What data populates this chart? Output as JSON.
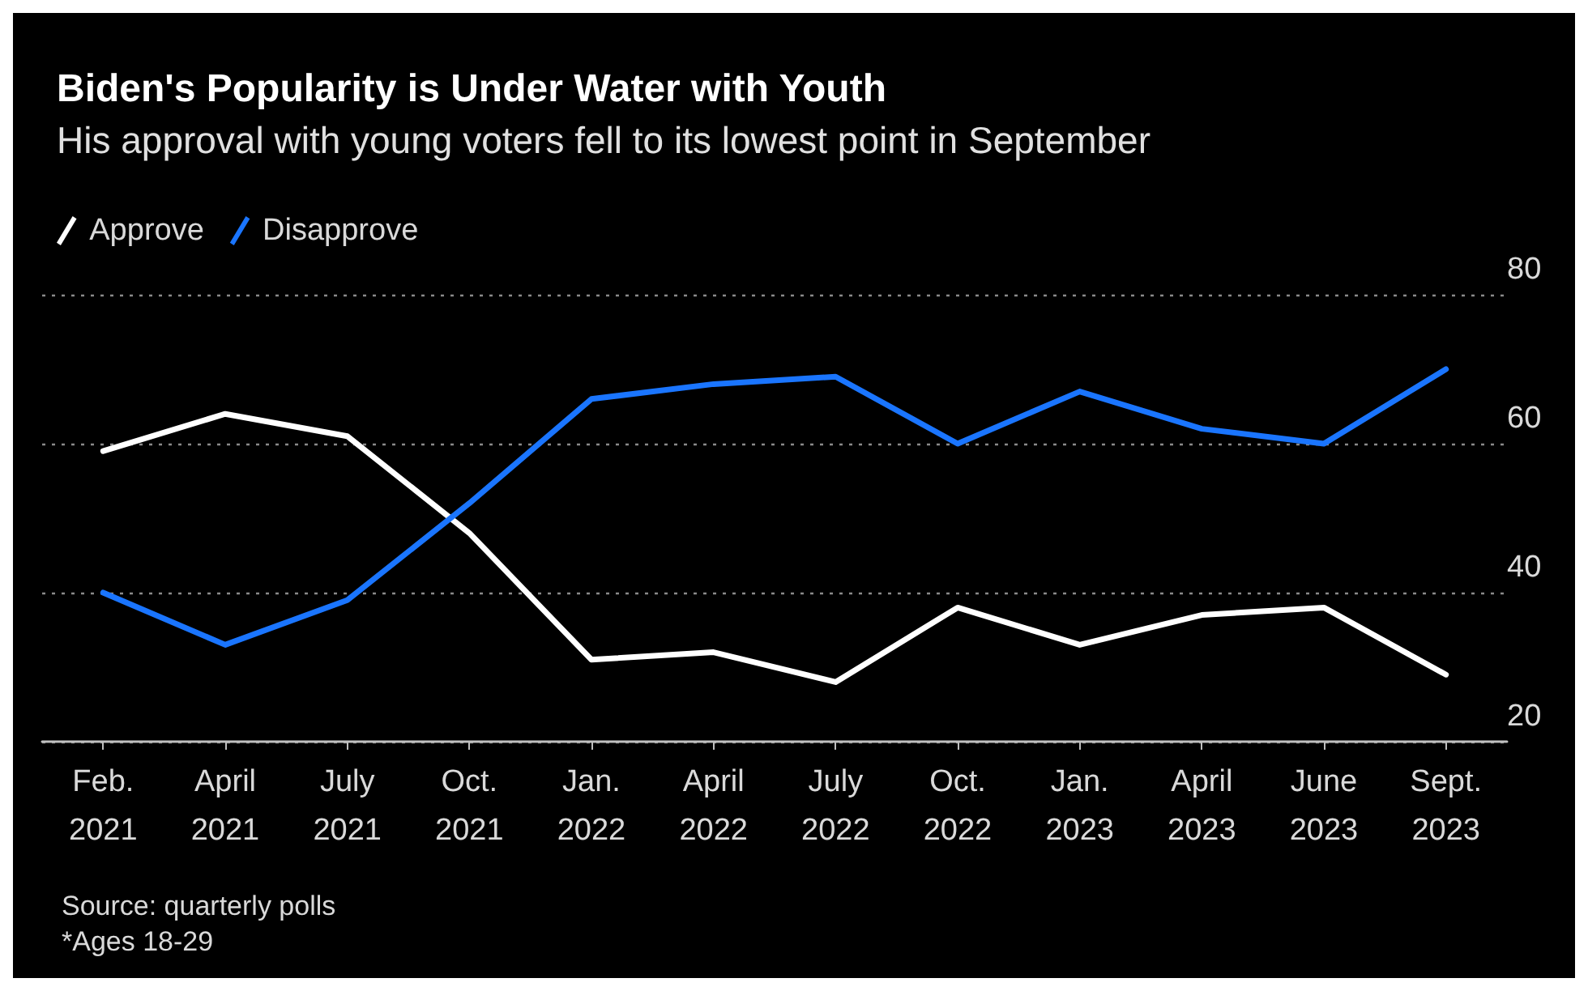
{
  "chart_data": {
    "type": "line",
    "title": "Biden's Popularity is Under Water with Youth",
    "subtitle": "His approval with young voters fell to its lowest point in September",
    "categories": [
      "Feb.\n2021",
      "April\n2021",
      "July\n2021",
      "Oct.\n2021",
      "Jan.\n2022",
      "April\n2022",
      "July\n2022",
      "Oct.\n2022",
      "Jan.\n2023",
      "April\n2023",
      "June\n2023",
      "Sept.\n2023"
    ],
    "series": [
      {
        "name": "Approve",
        "color": "#ffffff",
        "values": [
          59,
          64,
          61,
          48,
          31,
          32,
          28,
          38,
          33,
          37,
          38,
          29
        ]
      },
      {
        "name": "Disapprove",
        "color": "#1a75ff",
        "values": [
          40,
          33,
          39,
          52,
          66,
          68,
          69,
          60,
          67,
          62,
          60,
          70
        ]
      }
    ],
    "ylim": [
      20,
      80
    ],
    "yticks": [
      20,
      40,
      60,
      80
    ],
    "grid": "y",
    "legend": "top left",
    "marker": "none",
    "line_style": "solid",
    "annotations": [
      "Source: quarterly polls",
      "*Ages 18-29"
    ]
  }
}
